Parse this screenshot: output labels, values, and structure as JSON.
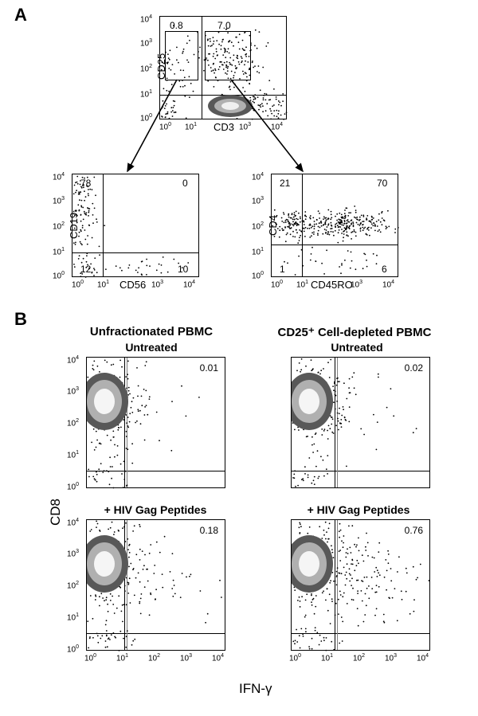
{
  "panelA_letter": "A",
  "panelB_letter": "B",
  "axis_ticks_log": [
    "10⁰",
    "10¹",
    "10²",
    "10³",
    "10⁴"
  ],
  "colors": {
    "background": "#ffffff",
    "axis": "#000000",
    "dot": "#000000",
    "dense_mid": "#a8a8a8",
    "dense_light": "#e6e6e6",
    "arrow": "#000000",
    "quad_gray": "#808080"
  },
  "panelA": {
    "top_plot": {
      "x_label": "CD3",
      "y_label": "CD25",
      "gate_left_label": "0.8",
      "gate_right_label": "7.0"
    },
    "left_plot": {
      "x_label": "CD56",
      "y_label": "CD19",
      "q_upper_left": "78",
      "q_upper_right": "0",
      "q_lower_left": "12",
      "q_lower_right": "10"
    },
    "right_plot": {
      "x_label": "CD45RO",
      "y_label": "CD4",
      "q_upper_left": "21",
      "q_upper_right": "70",
      "q_lower_left": "1",
      "q_lower_right": "6"
    }
  },
  "panelB": {
    "col_left_title": "Unfractionated PBMC",
    "col_right_title": "CD25⁺ Cell-depleted PBMC",
    "row_top_title": "Untreated",
    "row_bottom_title": "+ HIV Gag Peptides",
    "y_label": "CD8",
    "x_label": "IFN-γ",
    "plots": {
      "top_left_val": "0.01",
      "top_right_val": "0.02",
      "bottom_left_val": "0.18",
      "bottom_right_val": "0.76"
    }
  },
  "style": {
    "dot_radius": 0.9,
    "cloud_colors_outer": "#585858",
    "cloud_colors_mid": "#b0b0b0",
    "cloud_colors_inner": "#f0f0f0"
  }
}
